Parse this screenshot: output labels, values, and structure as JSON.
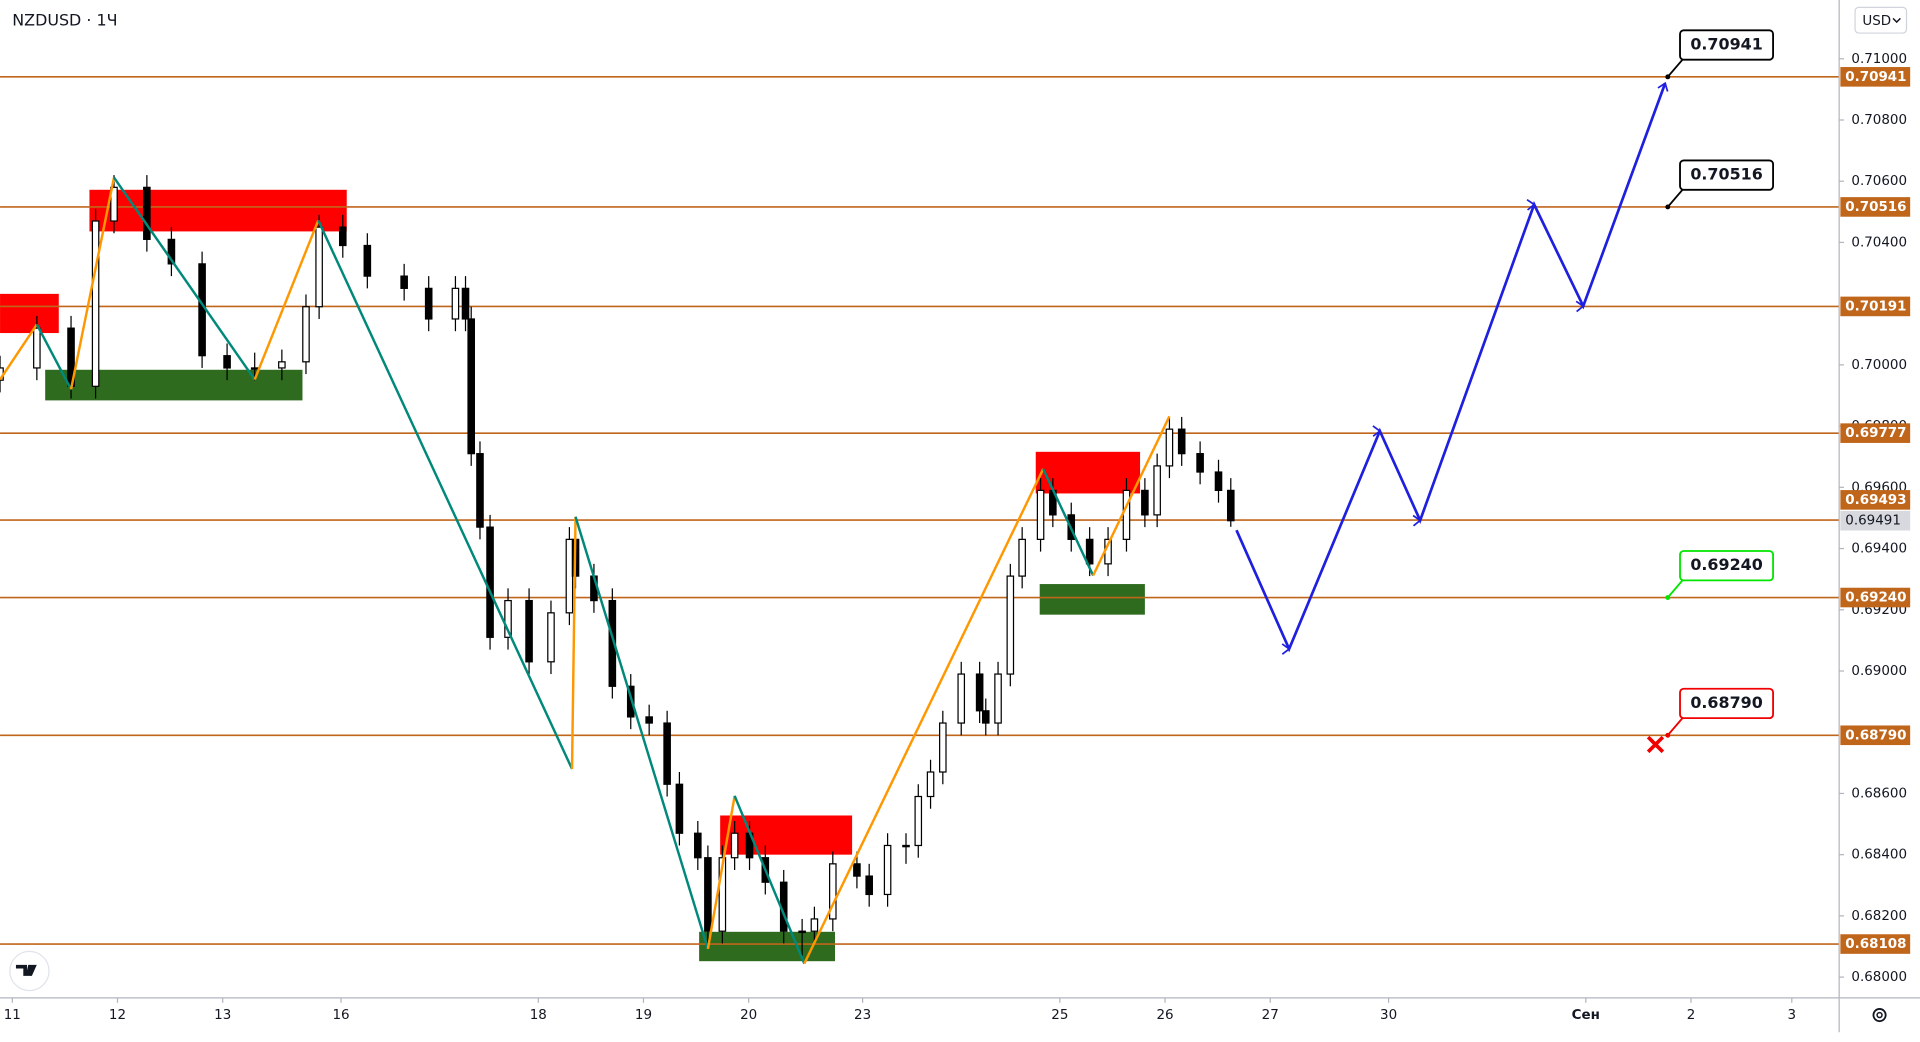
{
  "chart_data": {
    "type": "candlestick",
    "title": "NZDUSD · 1Ч",
    "currency": "USD",
    "xlim": [
      -2.8,
      416.8
    ],
    "ylim": [
      0.67932,
      0.71192
    ],
    "xticks": [
      {
        "value": 0,
        "label": "11"
      },
      {
        "value": 24,
        "label": "12"
      },
      {
        "value": 48,
        "label": "13"
      },
      {
        "value": 75,
        "label": "16"
      },
      {
        "value": 120,
        "label": "18"
      },
      {
        "value": 144,
        "label": "19"
      },
      {
        "value": 168,
        "label": "20"
      },
      {
        "value": 194,
        "label": "23"
      },
      {
        "value": 239,
        "label": "25"
      },
      {
        "value": 263,
        "label": "26"
      },
      {
        "value": 287,
        "label": "27"
      },
      {
        "value": 314,
        "label": "30"
      },
      {
        "value": 359,
        "label": "Сен"
      },
      {
        "value": 383,
        "label": "2"
      },
      {
        "value": 406,
        "label": "3"
      }
    ],
    "yticks": [
      {
        "value": 0.68,
        "label": "0.68000"
      },
      {
        "value": 0.682,
        "label": "0.68200"
      },
      {
        "value": 0.684,
        "label": "0.68400"
      },
      {
        "value": 0.686,
        "label": "0.68600"
      },
      {
        "value": 0.69,
        "label": "0.69000"
      },
      {
        "value": 0.692,
        "label": "0.69200"
      },
      {
        "value": 0.694,
        "label": "0.69400"
      },
      {
        "value": 0.696,
        "label": "0.69600"
      },
      {
        "value": 0.698,
        "label": "0.69800"
      },
      {
        "value": 0.7,
        "label": "0.70000"
      },
      {
        "value": 0.704,
        "label": "0.70400"
      },
      {
        "value": 0.706,
        "label": "0.70600"
      },
      {
        "value": 0.708,
        "label": "0.70800"
      },
      {
        "value": 0.71,
        "label": "0.71000"
      }
    ],
    "up_color": "#ffffff",
    "down_color": "#000000",
    "candles": [
      [
        -2.8,
        0.6995,
        0.7003,
        0.6991,
        0.6999
      ],
      [
        5.6,
        0.6999,
        0.7016,
        0.6995,
        0.7012
      ],
      [
        13.4,
        0.7012,
        0.7016,
        0.6989,
        0.6993
      ],
      [
        19.0,
        0.6993,
        0.7051,
        0.6989,
        0.7047
      ],
      [
        23.2,
        0.7047,
        0.7062,
        0.7043,
        0.7058
      ],
      [
        30.7,
        0.7058,
        0.7062,
        0.7037,
        0.7041
      ],
      [
        36.3,
        0.7041,
        0.7045,
        0.7029,
        0.7033
      ],
      [
        43.3,
        0.7033,
        0.7037,
        0.6999,
        0.7003
      ],
      [
        49.0,
        0.7003,
        0.7007,
        0.6995,
        0.6999
      ],
      [
        55.3,
        0.6999,
        0.7004,
        0.6995,
        0.6999
      ],
      [
        61.5,
        0.6999,
        0.7005,
        0.6995,
        0.7001
      ],
      [
        67.0,
        0.7001,
        0.7023,
        0.6997,
        0.7019
      ],
      [
        70.0,
        0.7019,
        0.7049,
        0.7015,
        0.7045
      ],
      [
        75.4,
        0.7045,
        0.7049,
        0.7035,
        0.7039
      ],
      [
        81.0,
        0.7039,
        0.7043,
        0.7025,
        0.7029
      ],
      [
        89.4,
        0.7029,
        0.7033,
        0.7021,
        0.7025
      ],
      [
        95.0,
        0.7025,
        0.7029,
        0.7011,
        0.7015
      ],
      [
        101.1,
        0.7015,
        0.7029,
        0.7011,
        0.7025
      ],
      [
        103.4,
        0.7025,
        0.7029,
        0.7011,
        0.7015
      ],
      [
        104.7,
        0.7015,
        0.7019,
        0.6967,
        0.6971
      ],
      [
        106.7,
        0.6971,
        0.6975,
        0.6943,
        0.6947
      ],
      [
        109.0,
        0.6947,
        0.6951,
        0.6907,
        0.6911
      ],
      [
        113.1,
        0.6911,
        0.6927,
        0.6907,
        0.6923
      ],
      [
        117.9,
        0.6923,
        0.6927,
        0.6899,
        0.6903
      ],
      [
        122.9,
        0.6903,
        0.6923,
        0.6899,
        0.6919
      ],
      [
        127.1,
        0.6919,
        0.6947,
        0.6915,
        0.6943
      ],
      [
        128.5,
        0.6943,
        0.6947,
        0.6927,
        0.6931
      ],
      [
        132.7,
        0.6931,
        0.6935,
        0.6919,
        0.6923
      ],
      [
        136.9,
        0.6923,
        0.6927,
        0.6891,
        0.6895
      ],
      [
        141.1,
        0.6895,
        0.6899,
        0.6881,
        0.6885
      ],
      [
        145.3,
        0.6885,
        0.6889,
        0.6879,
        0.6883
      ],
      [
        149.4,
        0.6883,
        0.6887,
        0.6859,
        0.6863
      ],
      [
        152.2,
        0.6863,
        0.6867,
        0.6843,
        0.6847
      ],
      [
        156.4,
        0.6847,
        0.6851,
        0.6835,
        0.6839
      ],
      [
        158.7,
        0.6839,
        0.6843,
        0.6811,
        0.6815
      ],
      [
        162.0,
        0.6815,
        0.6843,
        0.6811,
        0.6839
      ],
      [
        164.8,
        0.6839,
        0.6851,
        0.6835,
        0.6847
      ],
      [
        168.2,
        0.6847,
        0.6851,
        0.6835,
        0.6839
      ],
      [
        171.8,
        0.6839,
        0.6843,
        0.6827,
        0.6831
      ],
      [
        176.0,
        0.6831,
        0.6835,
        0.6811,
        0.6815
      ],
      [
        180.2,
        0.6815,
        0.6819,
        0.6807,
        0.6815
      ],
      [
        183.0,
        0.6815,
        0.6823,
        0.6811,
        0.6819
      ],
      [
        187.2,
        0.6819,
        0.6841,
        0.6815,
        0.6837
      ],
      [
        192.7,
        0.6837,
        0.6841,
        0.6829,
        0.6833
      ],
      [
        195.5,
        0.6833,
        0.6837,
        0.6823,
        0.6827
      ],
      [
        199.7,
        0.6827,
        0.6847,
        0.6823,
        0.6843
      ],
      [
        203.9,
        0.6843,
        0.6847,
        0.6837,
        0.6843
      ],
      [
        206.7,
        0.6843,
        0.6863,
        0.6839,
        0.6859
      ],
      [
        209.5,
        0.6859,
        0.6871,
        0.6855,
        0.6867
      ],
      [
        212.3,
        0.6867,
        0.6887,
        0.6863,
        0.6883
      ],
      [
        216.5,
        0.6883,
        0.6903,
        0.6879,
        0.6899
      ],
      [
        220.7,
        0.6899,
        0.6903,
        0.6883,
        0.6887
      ],
      [
        222.1,
        0.6887,
        0.6891,
        0.6879,
        0.6883
      ],
      [
        224.9,
        0.6883,
        0.6903,
        0.6879,
        0.6899
      ],
      [
        227.7,
        0.6899,
        0.6935,
        0.6895,
        0.6931
      ],
      [
        230.4,
        0.6931,
        0.6947,
        0.6927,
        0.6943
      ],
      [
        234.6,
        0.6943,
        0.6963,
        0.6939,
        0.6959
      ],
      [
        237.4,
        0.6959,
        0.6963,
        0.6947,
        0.6951
      ],
      [
        241.6,
        0.6951,
        0.6955,
        0.6939,
        0.6943
      ],
      [
        245.8,
        0.6943,
        0.6947,
        0.6931,
        0.6935
      ],
      [
        250.0,
        0.6935,
        0.6947,
        0.6931,
        0.6943
      ],
      [
        254.2,
        0.6943,
        0.6963,
        0.6939,
        0.6959
      ],
      [
        258.4,
        0.6959,
        0.6963,
        0.6947,
        0.6951
      ],
      [
        261.2,
        0.6951,
        0.6971,
        0.6947,
        0.6967
      ],
      [
        264.0,
        0.6967,
        0.6983,
        0.6963,
        0.6979
      ],
      [
        266.8,
        0.6979,
        0.6983,
        0.6967,
        0.6971
      ],
      [
        271.0,
        0.6971,
        0.6975,
        0.6961,
        0.6965
      ],
      [
        275.2,
        0.6965,
        0.6969,
        0.6955,
        0.6959
      ],
      [
        278.0,
        0.6959,
        0.6963,
        0.69471,
        0.69491
      ]
    ],
    "current_price": 0.69491,
    "levels": {
      "color": "#c0661b",
      "values": [
        0.70941,
        0.70516,
        0.70191,
        0.69777,
        0.69493,
        0.6924,
        0.6879,
        0.68108
      ],
      "value_labels": [
        "0.70941",
        "0.70516",
        "0.70191",
        "0.69777",
        "0.69493",
        "0.69240",
        "0.68790",
        "0.68108"
      ]
    },
    "zones": [
      {
        "x": [
          -2.8,
          10.6
        ],
        "y": [
          0.70232,
          0.70104
        ],
        "color": "#ff0000"
      },
      {
        "x": [
          17.6,
          76.3
        ],
        "y": [
          0.70572,
          0.70436
        ],
        "color": "#ff0000"
      },
      {
        "x": [
          161.5,
          191.6
        ],
        "y": [
          0.68528,
          0.684
        ],
        "color": "#ff0000"
      },
      {
        "x": [
          233.5,
          257.3
        ],
        "y": [
          0.69716,
          0.6958
        ],
        "color": "#ff0000"
      },
      {
        "x": [
          7.5,
          66.2
        ],
        "y": [
          0.69984,
          0.69884
        ],
        "color": "#2e6b1f"
      },
      {
        "x": [
          156.7,
          187.7
        ],
        "y": [
          0.68148,
          0.68052
        ],
        "color": "#2e6b1f"
      },
      {
        "x": [
          234.4,
          258.4
        ],
        "y": [
          0.69284,
          0.69184
        ],
        "color": "#2e6b1f"
      }
    ],
    "zigzag": {
      "up_color": "#ff9800",
      "down_color": "#00897b",
      "x": [
        -2.8,
        5.6,
        13.4,
        23.2,
        55.3,
        69.8,
        127.7,
        128.5,
        158.7,
        164.8,
        180.7,
        235.2,
        246.6,
        264.0
      ],
      "values": [
        0.69952,
        0.70132,
        0.6992,
        0.70612,
        0.69952,
        0.70472,
        0.6868,
        0.69504,
        0.68092,
        0.68592,
        0.68044,
        0.6966,
        0.69312,
        0.69832
      ]
    },
    "projection": {
      "color": "#1f1fe0",
      "x": [
        279.3,
        291.3,
        312.0,
        321.2,
        347.2,
        358.4,
        377.1
      ],
      "values": [
        0.6946,
        0.69072,
        0.69784,
        0.69492,
        0.70524,
        0.70192,
        0.7092
      ]
    },
    "callouts": [
      {
        "x": 377.7,
        "value": 0.70941,
        "label": "0.70941",
        "color": "#000000"
      },
      {
        "x": 377.7,
        "value": 0.70516,
        "label": "0.70516",
        "color": "#000000"
      },
      {
        "x": 377.7,
        "value": 0.6924,
        "label": "0.69240",
        "color": "#00e600"
      },
      {
        "x": 377.7,
        "value": 0.6879,
        "label": "0.68790",
        "color": "#f00000"
      }
    ]
  }
}
